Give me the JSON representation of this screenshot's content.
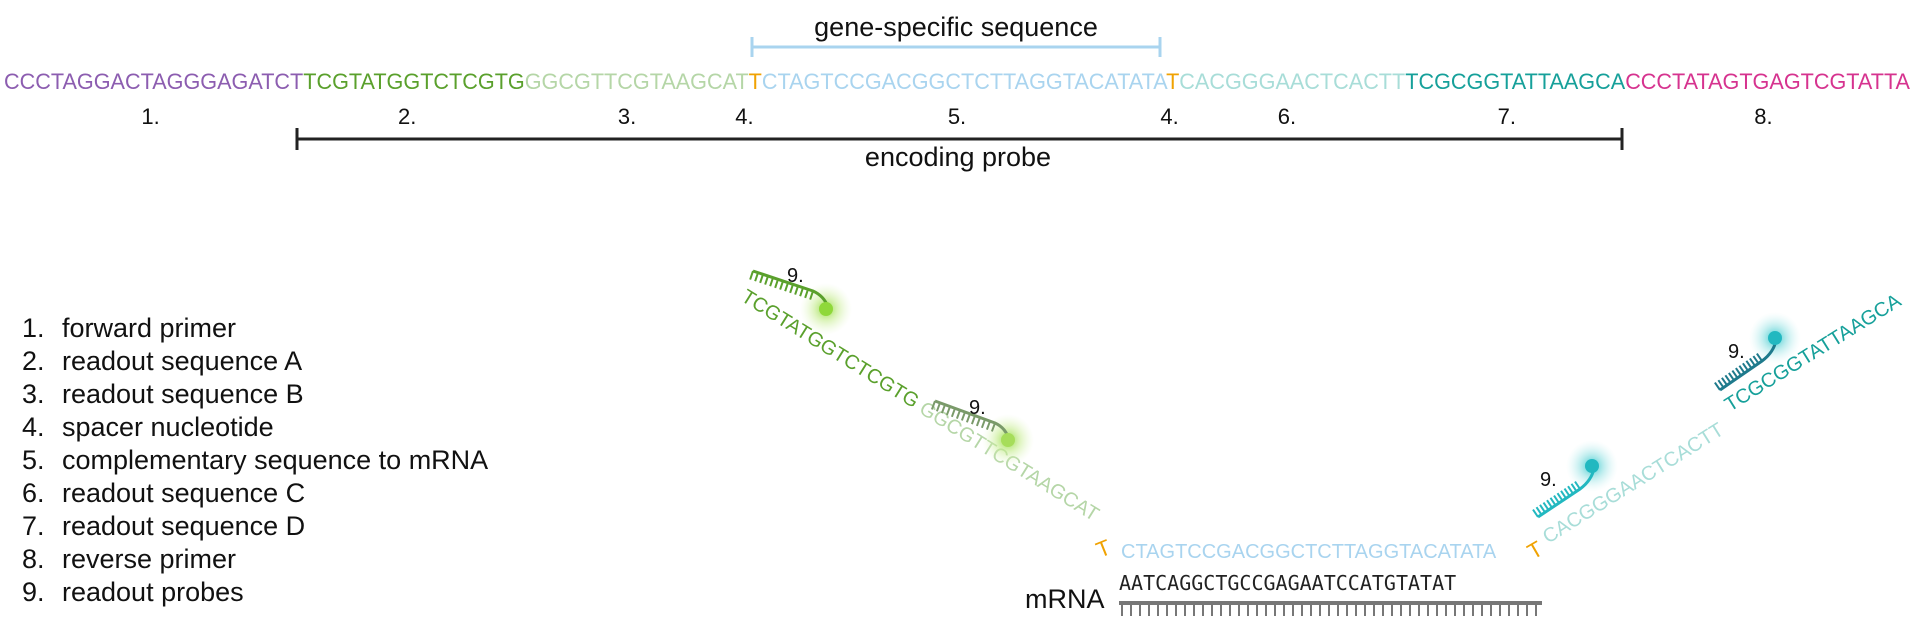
{
  "probe_sequence": {
    "segments": [
      {
        "text": "CCCTAGGACTAGGGAGATCT",
        "color": "#8c5db0",
        "number": "1."
      },
      {
        "text": "TCGTATGGTCTCGTG",
        "color": "#5aa02c",
        "number": "2."
      },
      {
        "text": "GGCGTTCGTAAGCAT",
        "color": "#b5d6a7",
        "number": "3."
      },
      {
        "text": "T",
        "color": "#f0a202",
        "number": "4."
      },
      {
        "text": "CTAGTCCGACGGCTCTTAGGTACATATA",
        "color": "#a9d4ef",
        "number": "5."
      },
      {
        "text": "T",
        "color": "#f0a202",
        "number": "4."
      },
      {
        "text": "CACGGGAACTCACTT",
        "color": "#a8ddd8",
        "number": "6."
      },
      {
        "text": "TCGCGGTATTAAGCA",
        "color": "#16a09a",
        "number": "7."
      },
      {
        "text": "CCCTATAGTGAGTCGTATTA",
        "color": "#d6338f",
        "number": "8."
      }
    ]
  },
  "gene_specific_label": "gene-specific sequence",
  "encoding_probe_label": "encoding probe",
  "legend": [
    {
      "num": "1.",
      "label": "forward primer"
    },
    {
      "num": "2.",
      "label": "readout sequence A"
    },
    {
      "num": "3.",
      "label": "readout sequence B"
    },
    {
      "num": "4.",
      "label": "spacer nucleotide"
    },
    {
      "num": "5.",
      "label": "complementary sequence to mRNA"
    },
    {
      "num": "6.",
      "label": "readout sequence C"
    },
    {
      "num": "7.",
      "label": "readout sequence D"
    },
    {
      "num": "8.",
      "label": "reverse primer"
    },
    {
      "num": "9.",
      "label": "readout probes"
    }
  ],
  "mrna_label": "mRNA",
  "mrna_sequence": "AATCAGGCTGCCGAGAATCCATGTATAT",
  "readout_probe_label": "9.",
  "colors": {
    "bracket_gene": "#a9d4ef",
    "bracket_encoding": "#222222",
    "readout_a_probe": "#5aa02c",
    "readout_b_probe": "#7a9a6a",
    "readout_c_probe": "#22b8c0",
    "readout_d_probe": "#1e7a8c",
    "fluor_green": "#a6dd5a",
    "fluor_cyan": "#3cc8cc",
    "mrna_backbone": "#777777"
  }
}
